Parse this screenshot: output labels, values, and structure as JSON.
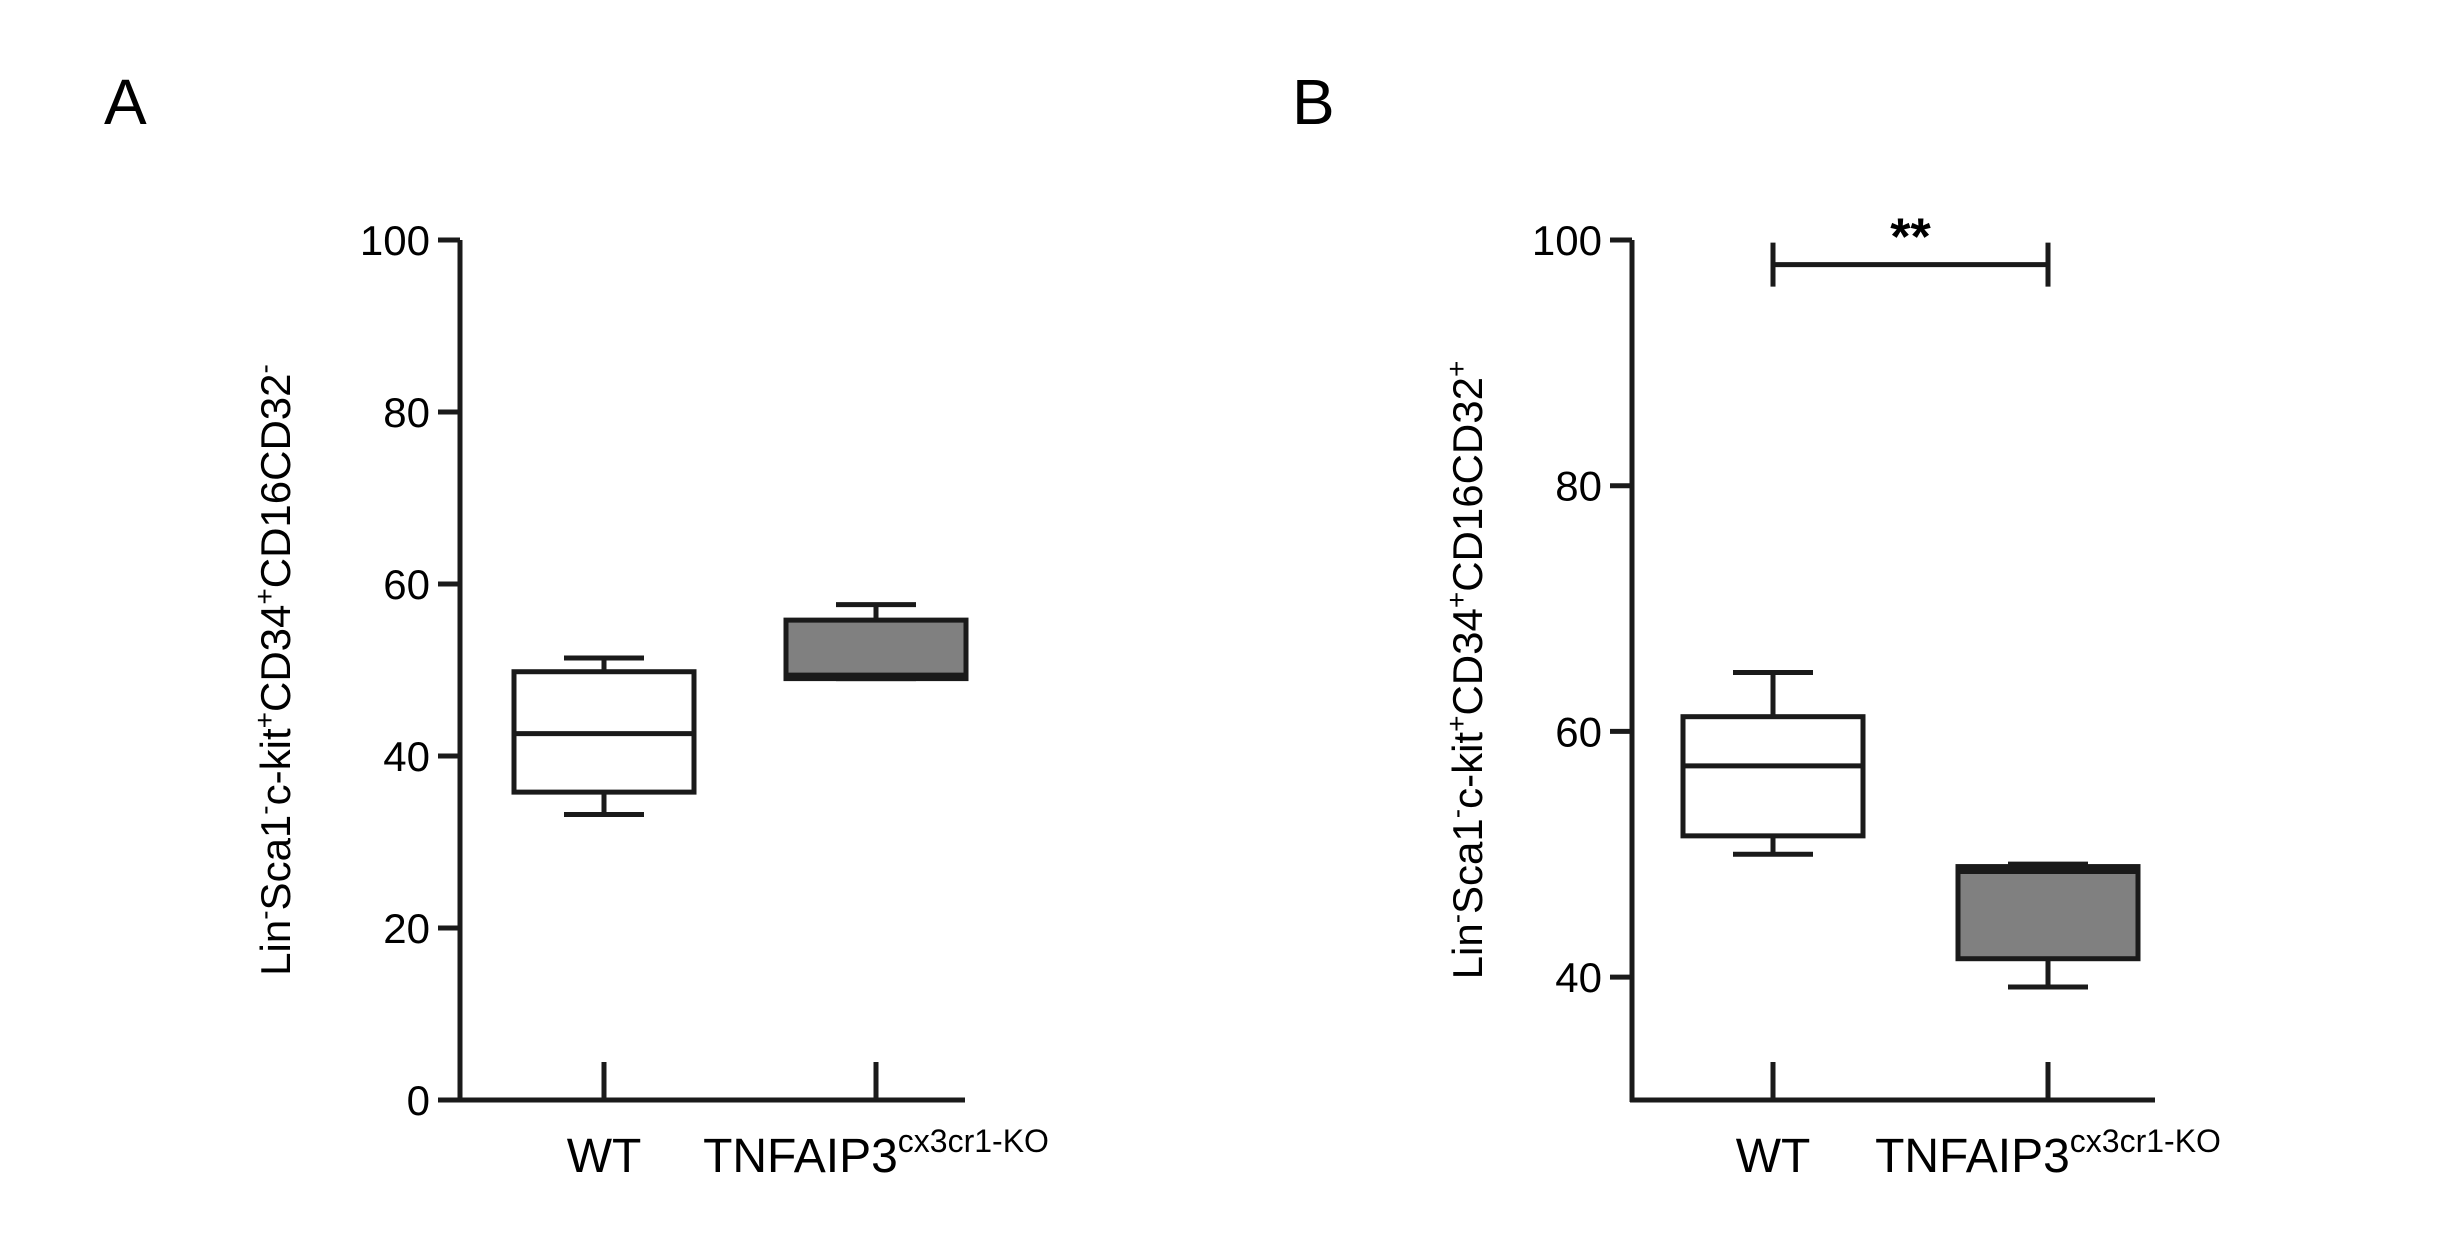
{
  "figure": {
    "panels": [
      "A",
      "B"
    ]
  },
  "chart_data": [
    {
      "panel": "A",
      "type": "box",
      "title": "",
      "xlabel": "",
      "ylabel": {
        "parts": [
          {
            "t": "Lin",
            "sup": false
          },
          {
            "t": "-",
            "sup": true
          },
          {
            "t": "Sca1",
            "sup": false
          },
          {
            "t": "-",
            "sup": true
          },
          {
            "t": "c-kit",
            "sup": false
          },
          {
            "t": "+",
            "sup": true
          },
          {
            "t": "CD34",
            "sup": false
          },
          {
            "t": "+",
            "sup": true
          },
          {
            "t": "CD16CD32",
            "sup": false
          },
          {
            "t": "-",
            "sup": true
          }
        ]
      },
      "ylim": [
        0,
        100
      ],
      "yticks": [
        0,
        20,
        40,
        60,
        80,
        100
      ],
      "ytick_labels": [
        "0",
        "20",
        "40",
        "60",
        "80",
        "100"
      ],
      "categories": [
        {
          "base": "WT",
          "sup": ""
        },
        {
          "base": "TNFAIP3",
          "sup": "cx3cr1-KO"
        }
      ],
      "series": [
        {
          "name": "WT",
          "fill": "#ffffff",
          "min": 33.2,
          "q1": 35.8,
          "median": 42.6,
          "q3": 49.8,
          "max": 51.4
        },
        {
          "name": "TNFAIP3 cx3cr1-KO",
          "fill": "#808080",
          "min": 49.0,
          "q1": 49.0,
          "median": 49.4,
          "q3": 55.8,
          "max": 57.6
        }
      ],
      "annotations": []
    },
    {
      "panel": "B",
      "type": "box",
      "title": "",
      "xlabel": "",
      "ylabel": {
        "parts": [
          {
            "t": "Lin",
            "sup": false
          },
          {
            "t": "-",
            "sup": true
          },
          {
            "t": "Sca1",
            "sup": false
          },
          {
            "t": "-",
            "sup": true
          },
          {
            "t": "c-kit",
            "sup": false
          },
          {
            "t": "+",
            "sup": true
          },
          {
            "t": "CD34",
            "sup": false
          },
          {
            "t": "+",
            "sup": true
          },
          {
            "t": "CD16CD32",
            "sup": false
          },
          {
            "t": "+",
            "sup": true
          }
        ]
      },
      "ylim": [
        30,
        100
      ],
      "yticks": [
        40,
        60,
        80,
        100
      ],
      "ytick_labels": [
        "40",
        "60",
        "80",
        "100"
      ],
      "categories": [
        {
          "base": "WT",
          "sup": ""
        },
        {
          "base": "TNFAIP3",
          "sup": "cx3cr1-KO"
        }
      ],
      "series": [
        {
          "name": "WT",
          "fill": "#ffffff",
          "min": 50.0,
          "q1": 51.5,
          "median": 57.2,
          "q3": 61.2,
          "max": 64.8
        },
        {
          "name": "TNFAIP3 cx3cr1-KO",
          "fill": "#808080",
          "min": 39.2,
          "q1": 41.5,
          "median": 48.6,
          "q3": 49.0,
          "max": 49.2
        }
      ],
      "annotations": [
        {
          "type": "significance",
          "label": "**",
          "from": 0,
          "to": 1,
          "y": 98
        }
      ]
    }
  ]
}
